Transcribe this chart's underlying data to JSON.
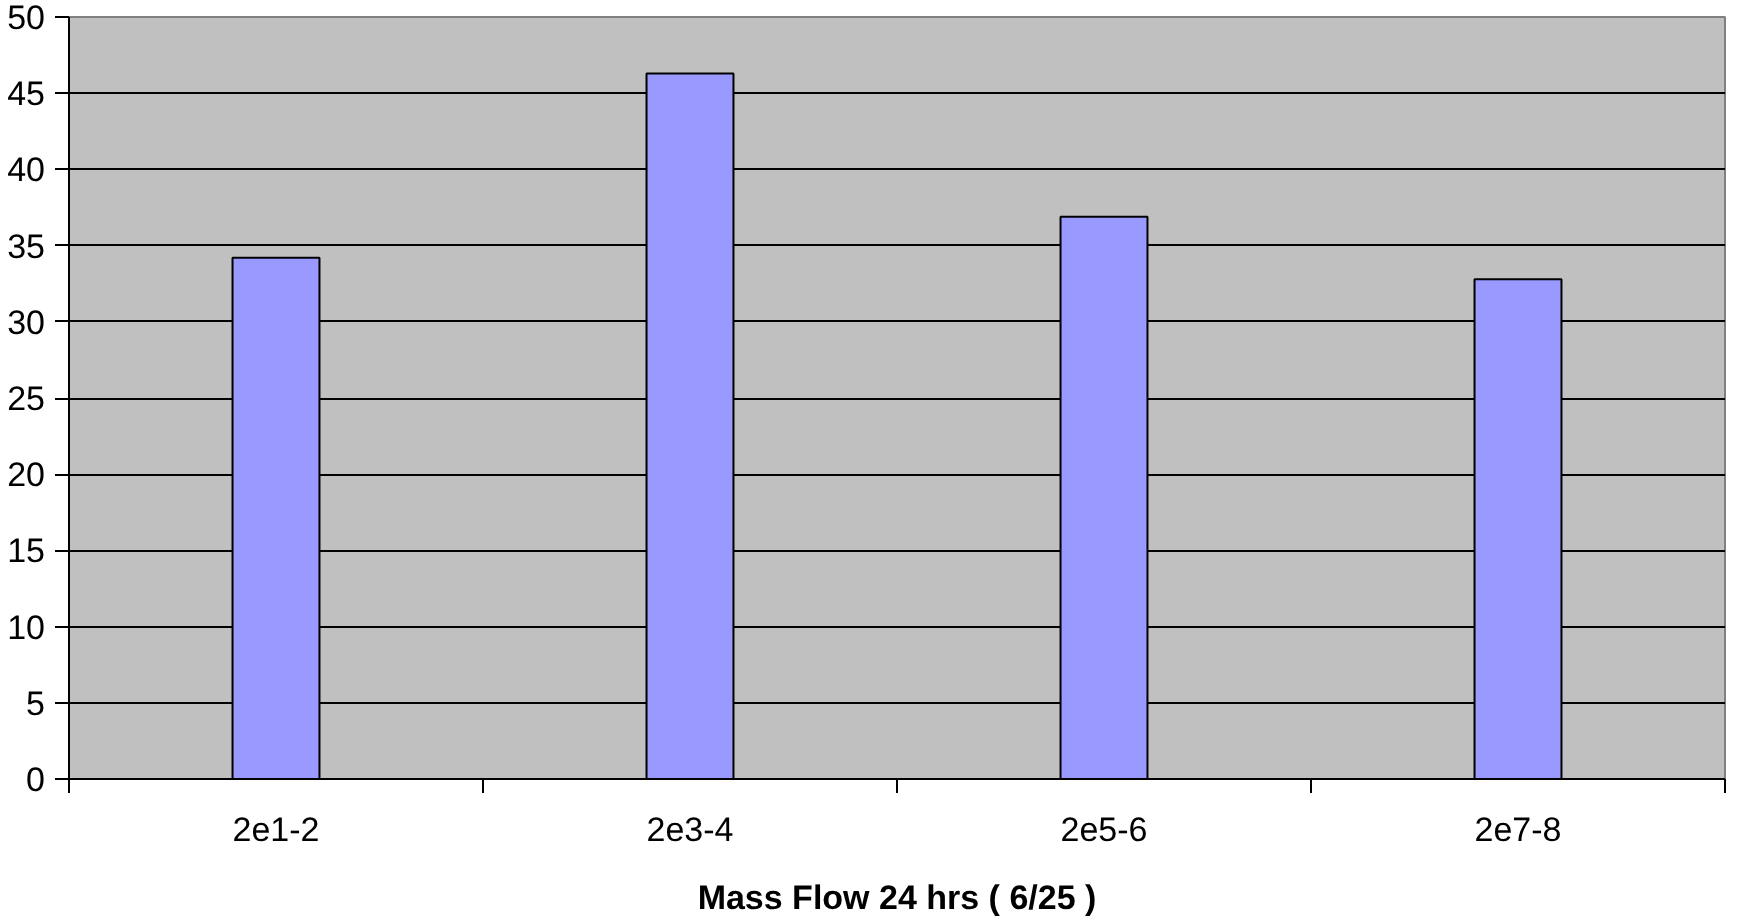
{
  "chart_data": {
    "type": "bar",
    "xlabel": "Mass Flow 24 hrs ( 6/25 )",
    "categories": [
      "2e1-2",
      "2e3-4",
      "2e5-6",
      "2e7-8"
    ],
    "values": [
      34.2,
      46.3,
      36.9,
      32.8
    ],
    "color": "#9999ff",
    "ylim": [
      0,
      50
    ],
    "yticks": [
      0,
      5,
      10,
      15,
      20,
      25,
      30,
      35,
      40,
      45,
      50
    ],
    "grid": "y"
  }
}
